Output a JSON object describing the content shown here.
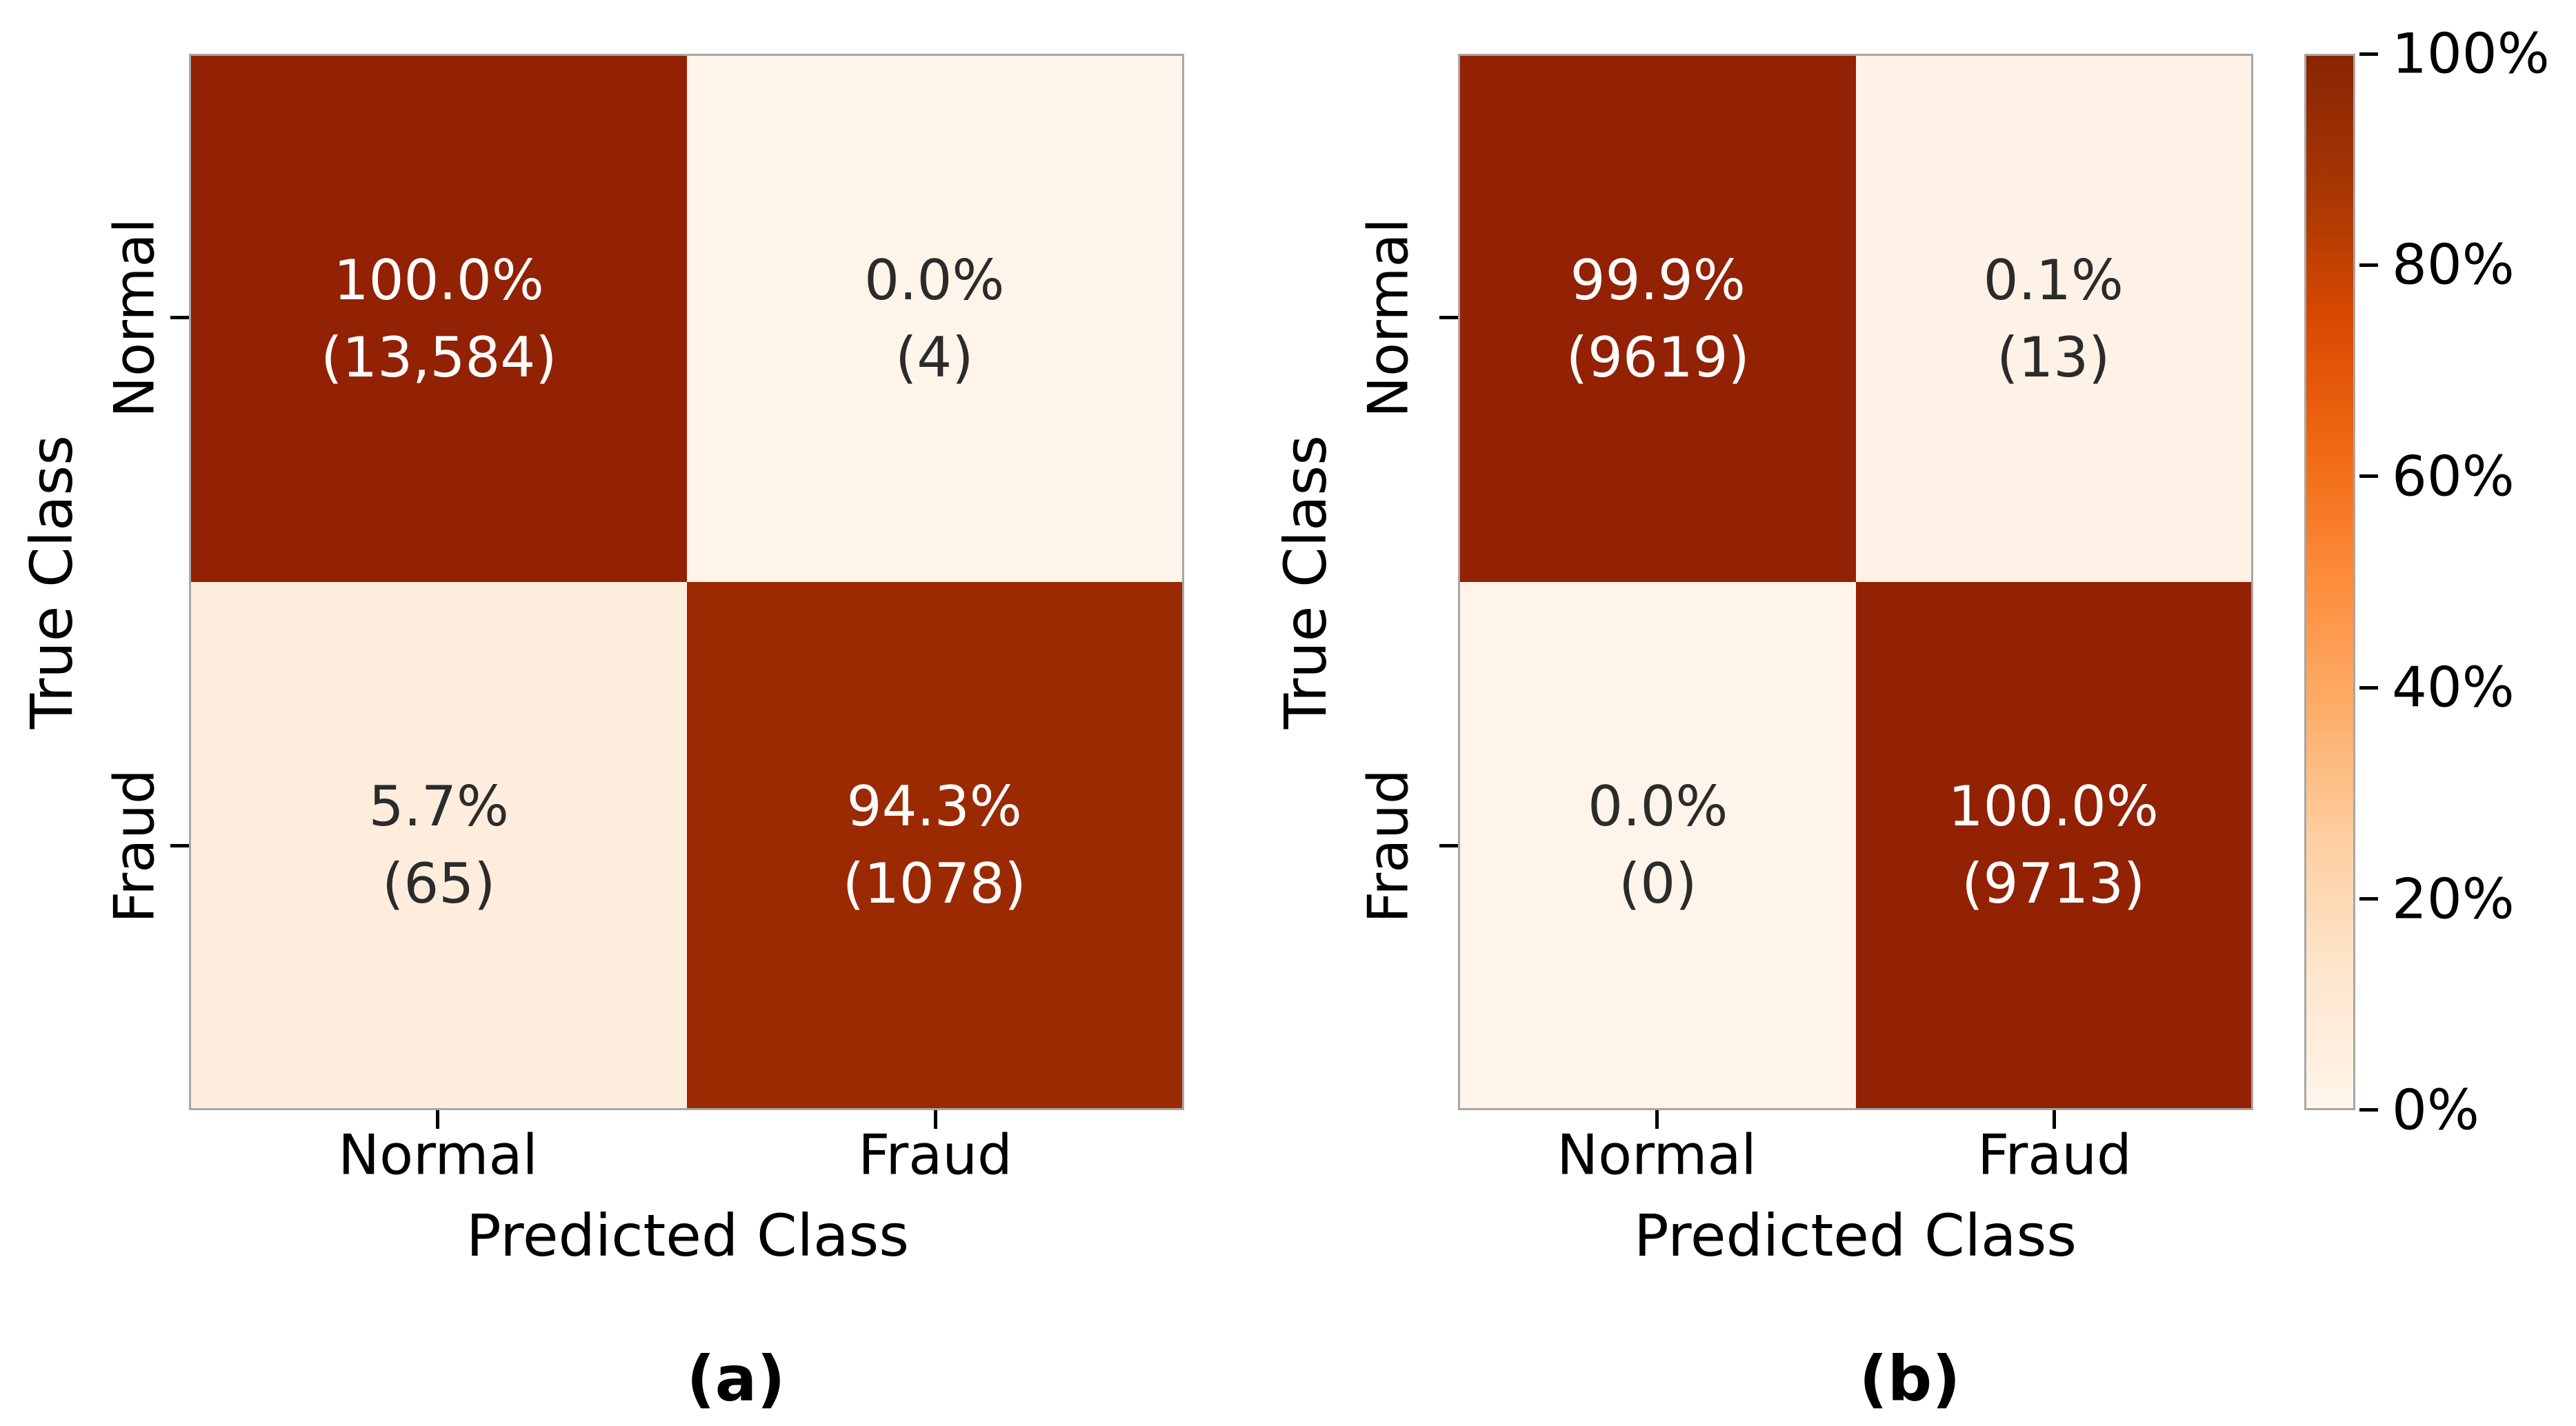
{
  "chart_data": [
    {
      "type": "heatmap",
      "panel": "a",
      "caption": "(a)",
      "xlabel": "Predicted Class",
      "ylabel": "True Class",
      "x_ticklabels": [
        "Normal",
        "Fraud"
      ],
      "y_ticklabels": [
        "Normal",
        "Fraud"
      ],
      "rows": [
        "Normal",
        "Fraud"
      ],
      "cols": [
        "Normal",
        "Fraud"
      ],
      "percent_matrix": [
        [
          100.0,
          0.0
        ],
        [
          5.7,
          94.3
        ]
      ],
      "count_matrix": [
        [
          13584,
          4
        ],
        [
          65,
          1078
        ]
      ],
      "cells": [
        {
          "row": "Normal",
          "col": "Normal",
          "percent": "100.0%",
          "count": "(13,584)",
          "value": 100.0,
          "bg": "#932103",
          "fg": "#ffffff"
        },
        {
          "row": "Normal",
          "col": "Fraud",
          "percent": "0.0%",
          "count": "(4)",
          "value": 0.0,
          "bg": "#fff4ea",
          "fg": "#2b2b2b"
        },
        {
          "row": "Fraud",
          "col": "Normal",
          "percent": "5.7%",
          "count": "(65)",
          "value": 5.7,
          "bg": "#feeddc",
          "fg": "#2b2b2b"
        },
        {
          "row": "Fraud",
          "col": "Fraud",
          "percent": "94.3%",
          "count": "(1078)",
          "value": 94.3,
          "bg": "#9b2a03",
          "fg": "#ffffff"
        }
      ]
    },
    {
      "type": "heatmap",
      "panel": "b",
      "caption": "(b)",
      "xlabel": "Predicted Class",
      "ylabel": "True Class",
      "x_ticklabels": [
        "Normal",
        "Fraud"
      ],
      "y_ticklabels": [
        "Normal",
        "Fraud"
      ],
      "rows": [
        "Normal",
        "Fraud"
      ],
      "cols": [
        "Normal",
        "Fraud"
      ],
      "percent_matrix": [
        [
          99.9,
          0.1
        ],
        [
          0.0,
          100.0
        ]
      ],
      "count_matrix": [
        [
          9619,
          13
        ],
        [
          0,
          9713
        ]
      ],
      "cells": [
        {
          "row": "Normal",
          "col": "Normal",
          "percent": "99.9%",
          "count": "(9619)",
          "value": 99.9,
          "bg": "#932103",
          "fg": "#ffffff"
        },
        {
          "row": "Normal",
          "col": "Fraud",
          "percent": "0.1%",
          "count": "(13)",
          "value": 0.1,
          "bg": "#fef2e6",
          "fg": "#2b2b2b"
        },
        {
          "row": "Fraud",
          "col": "Normal",
          "percent": "0.0%",
          "count": "(0)",
          "value": 0.0,
          "bg": "#fff4ea",
          "fg": "#2b2b2b"
        },
        {
          "row": "Fraud",
          "col": "Fraud",
          "percent": "100.0%",
          "count": "(9713)",
          "value": 100.0,
          "bg": "#932103",
          "fg": "#ffffff"
        }
      ]
    }
  ],
  "colorbar": {
    "tick_labels_top_to_bottom": [
      "100%",
      "80%",
      "60%",
      "40%",
      "20%",
      "0%"
    ],
    "range_min": "0%",
    "range_max": "100%",
    "gradient_stops_bottom_to_top": [
      "#fff5eb",
      "#fee6ce",
      "#fdd0a2",
      "#fdae6b",
      "#fd8d3c",
      "#f16913",
      "#d94801",
      "#a63603",
      "#8a2403"
    ]
  }
}
